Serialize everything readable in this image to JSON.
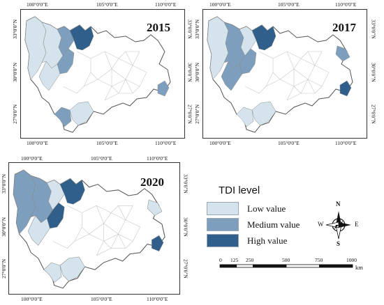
{
  "colors": {
    "low": "#d4e3ec",
    "medium": "#7d9fbd",
    "high": "#2f5f8a",
    "boundary": "#c8c8c8",
    "outline": "#555555"
  },
  "ticks": {
    "top": [
      "100°0'0\"E",
      "105°0'0\"E",
      "110°0'0\"E"
    ],
    "bottom": [
      "100°0'0\"E",
      "105°0'0\"E",
      "110°0'0\"E"
    ],
    "left": [
      "33°0'0\"N",
      "30°0'0\"N",
      "27°0'0\"N"
    ],
    "right": [
      "33°0'0\"N",
      "30°0'0\"N",
      "27°0'0\"N"
    ]
  },
  "panels": [
    {
      "year": "2015",
      "regions": [
        {
          "id": "nw-west",
          "level": "low"
        },
        {
          "id": "nw-central",
          "level": "low"
        },
        {
          "id": "north-a",
          "level": "medium"
        },
        {
          "id": "north-b",
          "level": "high"
        },
        {
          "id": "mid-west",
          "level": "medium"
        },
        {
          "id": "center-w",
          "level": "low"
        },
        {
          "id": "sw-a",
          "level": "medium"
        },
        {
          "id": "sw-b",
          "level": "low"
        },
        {
          "id": "east-a",
          "level": "medium"
        }
      ]
    },
    {
      "year": "2017",
      "regions": [
        {
          "id": "nw-west",
          "level": "low"
        },
        {
          "id": "nw-central",
          "level": "medium"
        },
        {
          "id": "north-a",
          "level": "low"
        },
        {
          "id": "north-b",
          "level": "high"
        },
        {
          "id": "mid-west",
          "level": "medium"
        },
        {
          "id": "center-w",
          "level": "medium"
        },
        {
          "id": "sw-a",
          "level": "low"
        },
        {
          "id": "sw-b",
          "level": "low"
        },
        {
          "id": "east-a",
          "level": "high"
        },
        {
          "id": "ne-a",
          "level": "medium"
        }
      ]
    },
    {
      "year": "2020",
      "regions": [
        {
          "id": "nw-west",
          "level": "medium"
        },
        {
          "id": "nw-central",
          "level": "medium"
        },
        {
          "id": "north-a",
          "level": "low"
        },
        {
          "id": "north-b",
          "level": "high"
        },
        {
          "id": "mid-west",
          "level": "high"
        },
        {
          "id": "center-w",
          "level": "low"
        },
        {
          "id": "sw-a",
          "level": "low"
        },
        {
          "id": "sw-b",
          "level": "low"
        },
        {
          "id": "east-a",
          "level": "high"
        },
        {
          "id": "ne-a",
          "level": "low"
        }
      ]
    }
  ],
  "legend": {
    "title": "TDI level",
    "items": [
      {
        "label": "Low value",
        "level": "low"
      },
      {
        "label": "Medium value",
        "level": "medium"
      },
      {
        "label": "High value",
        "level": "high"
      }
    ]
  },
  "compass": {
    "n": "N",
    "s": "S",
    "e": "E",
    "w": "W"
  },
  "scalebar": {
    "labels": [
      "0",
      "125",
      "250",
      "500",
      "750",
      "1000"
    ],
    "values": [
      0,
      125,
      250,
      500,
      750,
      1000
    ],
    "unit": "km"
  }
}
